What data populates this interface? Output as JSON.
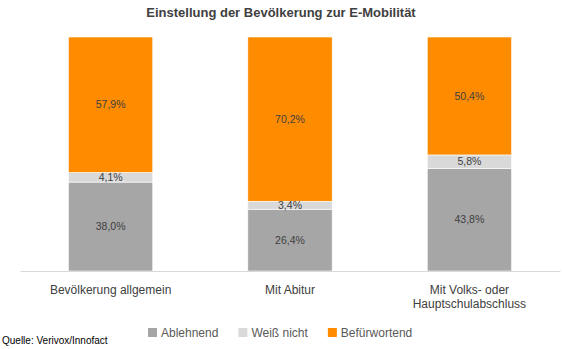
{
  "chart_data": {
    "type": "bar",
    "title": "Einstellung der Bevölkerung zur E-Mobilität",
    "source": "Quelle: Verivox/Innofact",
    "categories": [
      "Bevölkerung allgemein",
      "Mit Abitur",
      "Mit Volks- oder Hauptschulabschluss"
    ],
    "series": [
      {
        "name": "Ablehnend",
        "color": "#a6a6a6",
        "values": [
          38.0,
          26.4,
          43.8
        ],
        "value_labels": [
          "38,0%",
          "26,4%",
          "43,8%"
        ]
      },
      {
        "name": "Weiß nicht",
        "color": "#d9d9d9",
        "values": [
          4.1,
          3.4,
          5.8
        ],
        "value_labels": [
          "4,1%",
          "3,4%",
          "5,8%"
        ]
      },
      {
        "name": "Befürwortend",
        "color": "#ff8c00",
        "values": [
          57.9,
          70.2,
          50.4
        ],
        "value_labels": [
          "57,9%",
          "70,2%",
          "50,4%"
        ]
      }
    ],
    "ylim": [
      0,
      100
    ],
    "stacked": true,
    "data_labels": true,
    "legend": "bottom",
    "tick_labels": "x",
    "grid": false
  }
}
